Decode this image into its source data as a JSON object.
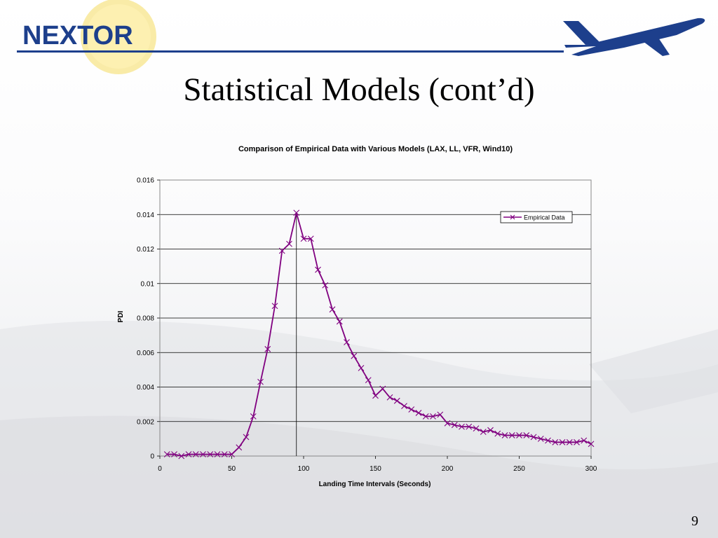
{
  "slide": {
    "logo_text": "NEXTOR",
    "title": "Statistical Models (cont’d)",
    "page_number": "9"
  },
  "colors": {
    "brand_blue": "#1d3f8c",
    "logo_circle": "#f7e48a",
    "series_purple": "#800080"
  },
  "icons": {
    "logo": "nextor-logo-icon",
    "plane": "airplane-icon"
  },
  "chart_data": {
    "type": "line",
    "title": "Comparison of Empirical Data with Various Models (LAX, LL, VFR, Wind10)",
    "xlabel": "Landing Time Intervals (Seconds)",
    "ylabel": "PDI",
    "xlim": [
      0,
      300
    ],
    "ylim": [
      0,
      0.016
    ],
    "x_ticks": [
      "0",
      "50",
      "100",
      "150",
      "200",
      "250",
      "300"
    ],
    "y_ticks": [
      "0",
      "0.002",
      "0.004",
      "0.006",
      "0.008",
      "0.01",
      "0.012",
      "0.014",
      "0.016"
    ],
    "grid": "horizontal",
    "legend_position": "top-right",
    "reference_line_x": 95,
    "series": [
      {
        "name": "Empirical Data",
        "color": "#800080",
        "marker": "x",
        "x": [
          5,
          10,
          15,
          20,
          25,
          30,
          35,
          40,
          45,
          50,
          55,
          60,
          65,
          70,
          75,
          80,
          85,
          90,
          95,
          100,
          105,
          110,
          115,
          120,
          125,
          130,
          135,
          140,
          145,
          150,
          155,
          160,
          165,
          170,
          175,
          180,
          185,
          190,
          195,
          200,
          205,
          210,
          215,
          220,
          225,
          230,
          235,
          240,
          245,
          250,
          255,
          260,
          265,
          270,
          275,
          280,
          285,
          290,
          295,
          300
        ],
        "y": [
          0.0001,
          0.0001,
          0.0,
          0.0001,
          0.0001,
          0.0001,
          0.0001,
          0.0001,
          0.0001,
          0.0001,
          0.0005,
          0.0011,
          0.0023,
          0.0043,
          0.0062,
          0.0087,
          0.0119,
          0.0123,
          0.0141,
          0.0126,
          0.0126,
          0.0108,
          0.0099,
          0.0085,
          0.0078,
          0.0066,
          0.0058,
          0.0051,
          0.0044,
          0.0035,
          0.0039,
          0.0034,
          0.0032,
          0.0029,
          0.0027,
          0.0025,
          0.0023,
          0.0023,
          0.0024,
          0.0019,
          0.0018,
          0.0017,
          0.0017,
          0.0016,
          0.0014,
          0.0015,
          0.0013,
          0.0012,
          0.0012,
          0.0012,
          0.0012,
          0.0011,
          0.001,
          0.0009,
          0.0008,
          0.0008,
          0.0008,
          0.0008,
          0.0009,
          0.0007
        ]
      }
    ]
  }
}
